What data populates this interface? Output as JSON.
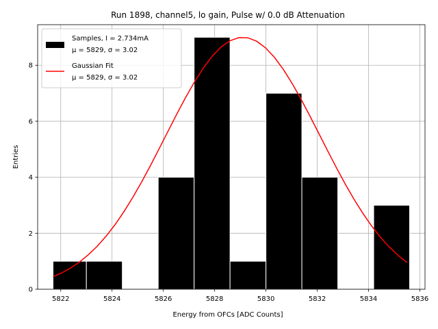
{
  "chart_data": {
    "type": "bar",
    "title": "Run 1898, channel5, lo gain, Pulse w/ 0.0 dB Attenuation",
    "xlabel": "Energy from OFCs [ADC Counts]",
    "ylabel": "Entries",
    "xlim": [
      5821.1,
      5836.2
    ],
    "ylim": [
      0,
      9.45
    ],
    "grid": true,
    "legend_position": "upper-left",
    "x_ticks": [
      5822,
      5824,
      5826,
      5828,
      5830,
      5832,
      5834,
      5836
    ],
    "y_ticks": [
      0,
      2,
      4,
      6,
      8
    ],
    "histogram": {
      "name_line1": "Samples, I = 2.734mA",
      "name_line2": "μ = 5829, σ = 3.02",
      "color": "#000000",
      "edge_color": "#ffffff",
      "bins": [
        {
          "x0": 5821.7,
          "x1": 5823.0,
          "count": 1
        },
        {
          "x0": 5823.0,
          "x1": 5824.4,
          "count": 1
        },
        {
          "x0": 5824.4,
          "x1": 5825.8,
          "count": 0
        },
        {
          "x0": 5825.8,
          "x1": 5827.2,
          "count": 4
        },
        {
          "x0": 5827.2,
          "x1": 5828.6,
          "count": 9
        },
        {
          "x0": 5828.6,
          "x1": 5830.0,
          "count": 1
        },
        {
          "x0": 5830.0,
          "x1": 5831.4,
          "count": 7
        },
        {
          "x0": 5831.4,
          "x1": 5832.8,
          "count": 4
        },
        {
          "x0": 5832.8,
          "x1": 5834.2,
          "count": 0
        },
        {
          "x0": 5834.2,
          "x1": 5835.6,
          "count": 3
        }
      ]
    },
    "fit": {
      "name_line1": "Gaussian Fit",
      "name_line2": "μ = 5829, σ = 3.02",
      "color": "#ff0000",
      "mu": 5829.1,
      "sigma": 3.02,
      "amplitude": 9.0,
      "x_range": [
        5821.7,
        5835.5
      ]
    }
  }
}
